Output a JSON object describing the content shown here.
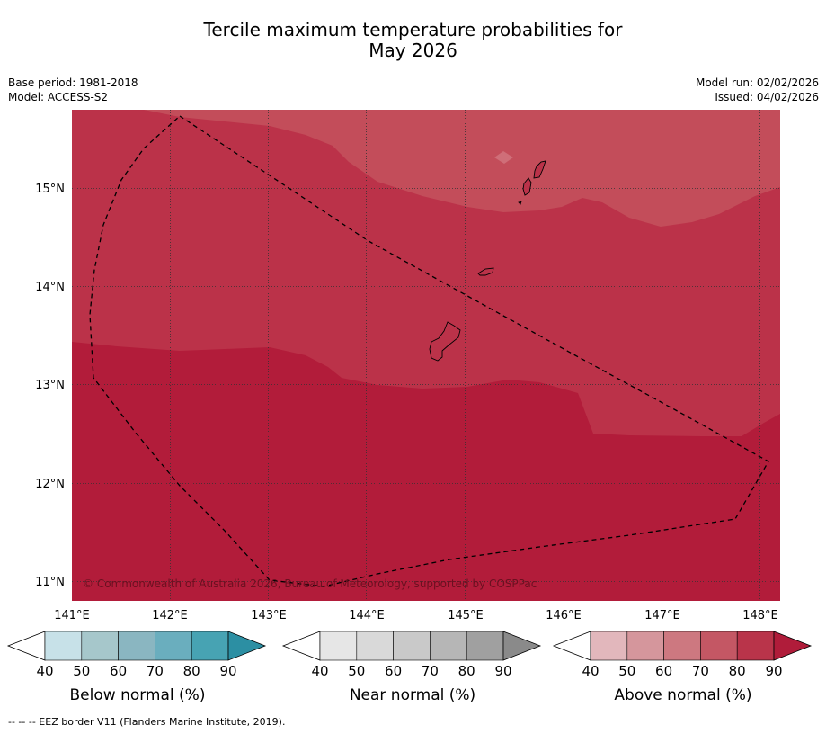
{
  "title_line1": "Tercile maximum temperature probabilities for",
  "title_line2": "May 2026",
  "meta_left": [
    "Base period: 1981-2018",
    "Model: ACCESS-S2"
  ],
  "meta_right": [
    "Model run: 02/02/2026",
    "Issued: 04/02/2026"
  ],
  "copyright": "© Commonwealth of Australia 2026, Bureau of Meteorology, supported by COSPPac",
  "footer": "--  --  -- EEZ border V11 (Flanders Marine Institute, 2019).",
  "map": {
    "lon_ticks": [
      "141°E",
      "142°E",
      "143°E",
      "144°E",
      "145°E",
      "146°E",
      "147°E",
      "148°E"
    ],
    "lat_ticks": [
      "15°N",
      "14°N",
      "13°N",
      "12°N",
      "11°N"
    ],
    "lon_range": [
      140.99,
      148.2
    ],
    "lat_range": [
      10.8,
      15.79
    ]
  },
  "colorbars": [
    {
      "label": "Below normal (%)",
      "ticks": [
        "40",
        "50",
        "60",
        "70",
        "80",
        "90"
      ],
      "colors": [
        "#c7e1e8",
        "#a6c7cb",
        "#8ab6c1",
        "#6aaebe",
        "#47a3b3",
        "#2c8fa3"
      ]
    },
    {
      "label": "Near normal (%)",
      "ticks": [
        "40",
        "50",
        "60",
        "70",
        "80",
        "90"
      ],
      "colors": [
        "#e6e6e6",
        "#d9d9d9",
        "#c9c9c9",
        "#b6b6b6",
        "#a0a0a0",
        "#8a8a8a"
      ]
    },
    {
      "label": "Above normal (%)",
      "ticks": [
        "40",
        "50",
        "60",
        "70",
        "80",
        "90"
      ],
      "colors": [
        "#e2b7bc",
        "#d5969c",
        "#cd7880",
        "#c45764",
        "#b9344a",
        "#b01c3a"
      ]
    }
  ],
  "colors": {
    "category_70_80": "#c34d5a",
    "category_80_90": "#bb3249",
    "category_90_plus": "#b21c3a",
    "grid": "#333333"
  }
}
